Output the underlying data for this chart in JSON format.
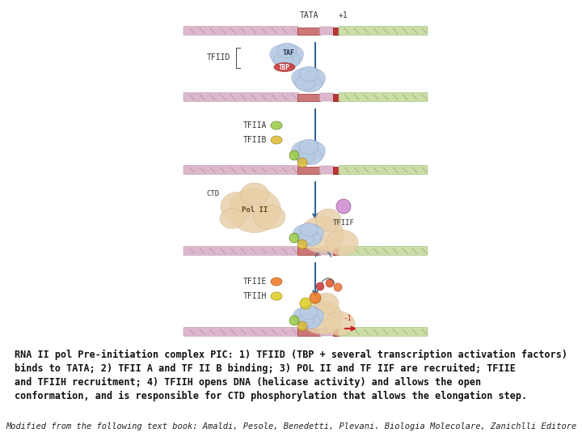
{
  "bg_color": "#ffffff",
  "fig_width": 7.2,
  "fig_height": 5.4,
  "dpi": 100,
  "main_text_lines": [
    "RNA II pol Pre-initiation complex PIC: 1) TFIID (TBP + several transcription activation factors)",
    "binds to TATA; 2) TFII A and TF II B binding; 3) POL II and TF IIF are recruited; TFIIE",
    "and TFIIH recruitment; 4) TFIIH opens DNA (helicase activity) and allows the open",
    "conformation, and is responsible for CTD phosphorylation that allows the elongation step."
  ],
  "citation_text": "Modified from the following text book: Amaldi, Pesole, Benedetti, Plevani. Biologia Molecolare, Zanichlli Editore",
  "tata_label": "TATA",
  "plus1_label": "+1",
  "minus1_label": "-1",
  "tfiid_label": "TFIID",
  "taf_label": "TAF",
  "tbp_label": "TBP",
  "tfiia_label": "TFIIA",
  "tfiib_label": "TFIIB",
  "ctd_label": "CTD",
  "polII_label": "Pol II",
  "tfiif_label": "TFIIF",
  "tfiie_label": "TFIIE",
  "tfiih_label": "TFIIH",
  "dna_left_color": "#ddb8cc",
  "dna_right_color": "#ccdda8",
  "tata_color": "#cc7777",
  "plus1_color": "#bb3333",
  "arrow_color": "#336699",
  "label_color": "#333333"
}
